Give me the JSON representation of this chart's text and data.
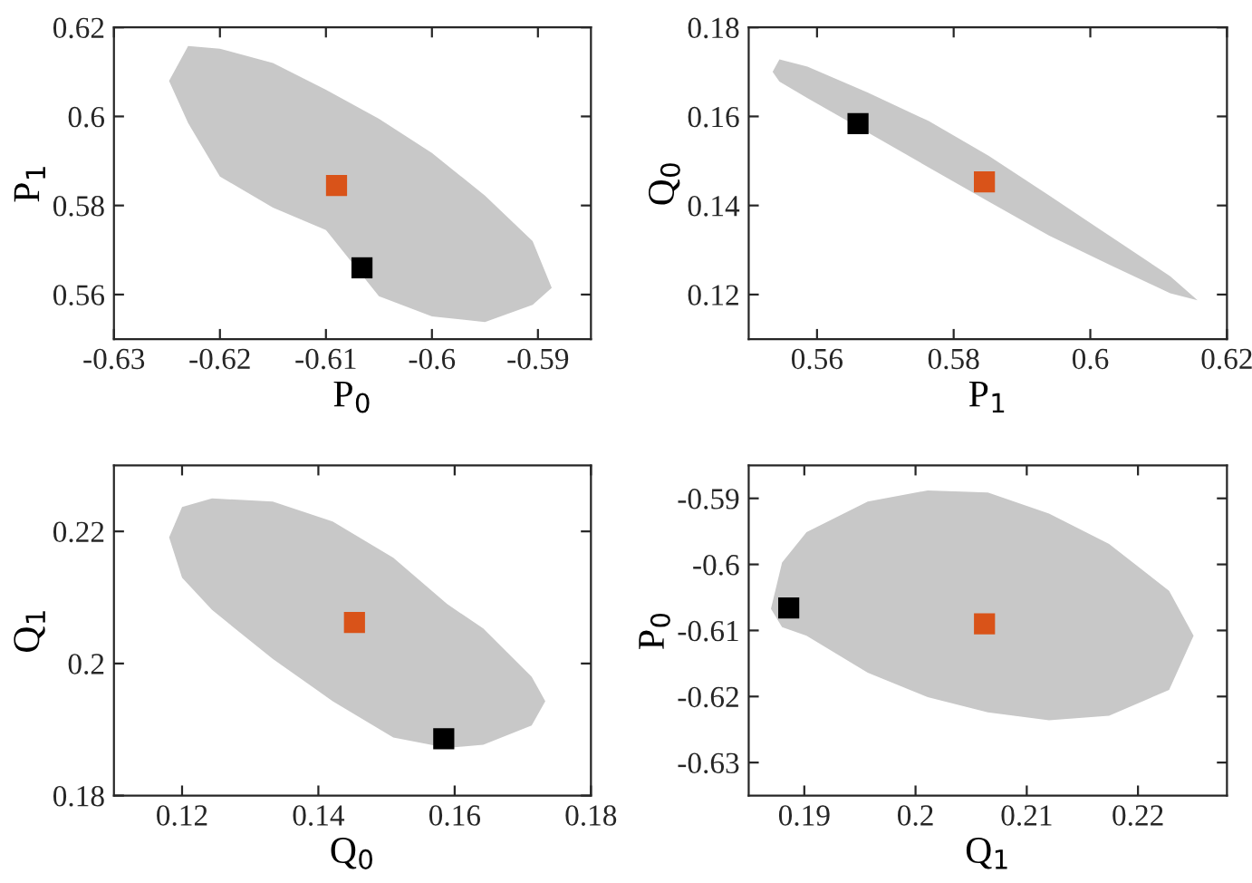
{
  "chart_data": [
    {
      "type": "scatter",
      "xlabel": "P$_{0}$",
      "ylabel": "P$_{1}$",
      "xlim": [
        -0.63,
        -0.585
      ],
      "ylim": [
        0.55,
        0.62
      ],
      "xticks": [
        -0.63,
        -0.62,
        -0.61,
        -0.6,
        -0.59
      ],
      "yticks": [
        0.56,
        0.58,
        0.6,
        0.62
      ],
      "grid": false,
      "legend": false,
      "series": [
        {
          "type": "area",
          "color": "#c8c8c8",
          "x": [
            -0.6248,
            -0.623,
            -0.62,
            -0.615,
            -0.61,
            -0.605,
            -0.6,
            -0.595,
            -0.5905,
            -0.5887,
            -0.5905,
            -0.595,
            -0.6,
            -0.605,
            -0.61,
            -0.615,
            -0.62,
            -0.623
          ],
          "values": [
            0.608,
            0.6158,
            0.6152,
            0.612,
            0.606,
            0.5995,
            0.5918,
            0.5822,
            0.572,
            0.5615,
            0.5577,
            0.5538,
            0.5551,
            0.5596,
            0.5745,
            0.5795,
            0.5865,
            0.5985
          ]
        },
        {
          "type": "scatter",
          "marker": "square",
          "color": "#d95319",
          "x": [
            -0.609
          ],
          "values": [
            0.5845
          ]
        },
        {
          "type": "scatter",
          "marker": "square",
          "color": "#000000",
          "x": [
            -0.6066
          ],
          "values": [
            0.566
          ]
        }
      ]
    },
    {
      "type": "scatter",
      "xlabel": "P$_{1}$",
      "ylabel": "Q$_{0}$",
      "xlim": [
        0.55,
        0.62
      ],
      "ylim": [
        0.11,
        0.18
      ],
      "xticks": [
        0.56,
        0.58,
        0.6,
        0.62
      ],
      "yticks": [
        0.12,
        0.14,
        0.16,
        0.18
      ],
      "grid": false,
      "legend": false,
      "series": [
        {
          "type": "area",
          "color": "#c8c8c8",
          "x": [
            0.5535,
            0.5545,
            0.5586,
            0.5674,
            0.5763,
            0.5851,
            0.594,
            0.6028,
            0.6117,
            0.6157,
            0.6117,
            0.6028,
            0.594,
            0.5851,
            0.5763,
            0.5674,
            0.5586,
            0.5545
          ],
          "values": [
            0.17,
            0.1728,
            0.1712,
            0.1654,
            0.159,
            0.1512,
            0.1422,
            0.1332,
            0.1241,
            0.1187,
            0.1203,
            0.1267,
            0.1332,
            0.1409,
            0.1486,
            0.1564,
            0.1641,
            0.1678
          ]
        },
        {
          "type": "scatter",
          "marker": "square",
          "color": "#000000",
          "x": [
            0.566
          ],
          "values": [
            0.1584
          ]
        },
        {
          "type": "scatter",
          "marker": "square",
          "color": "#d95319",
          "x": [
            0.5845
          ],
          "values": [
            0.1453
          ]
        }
      ]
    },
    {
      "type": "scatter",
      "xlabel": "Q$_{0}$",
      "ylabel": "Q$_{1}$",
      "xlim": [
        0.11,
        0.18
      ],
      "ylim": [
        0.18,
        0.23
      ],
      "xticks": [
        0.12,
        0.14,
        0.16,
        0.18
      ],
      "yticks": [
        0.18,
        0.2,
        0.22
      ],
      "grid": false,
      "legend": false,
      "series": [
        {
          "type": "area",
          "color": "#c8c8c8",
          "x": [
            0.1181,
            0.12,
            0.1244,
            0.1333,
            0.1421,
            0.151,
            0.1589,
            0.1642,
            0.1713,
            0.1733,
            0.1713,
            0.1642,
            0.1589,
            0.151,
            0.1421,
            0.1333,
            0.1244,
            0.12
          ],
          "values": [
            0.2191,
            0.2237,
            0.225,
            0.2245,
            0.2215,
            0.216,
            0.209,
            0.2053,
            0.198,
            0.1943,
            0.1906,
            0.1877,
            0.1872,
            0.1888,
            0.1943,
            0.2007,
            0.2081,
            0.213
          ]
        },
        {
          "type": "scatter",
          "marker": "square",
          "color": "#d95319",
          "x": [
            0.1453
          ],
          "values": [
            0.2062
          ]
        },
        {
          "type": "scatter",
          "marker": "square",
          "color": "#000000",
          "x": [
            0.1584
          ],
          "values": [
            0.1886
          ]
        }
      ]
    },
    {
      "type": "scatter",
      "xlabel": "Q$_{1}$",
      "ylabel": "P$_{0}$",
      "xlim": [
        0.185,
        0.228
      ],
      "ylim": [
        -0.635,
        -0.585
      ],
      "xticks": [
        0.19,
        0.2,
        0.21,
        0.22
      ],
      "yticks": [
        -0.63,
        -0.62,
        -0.61,
        -0.6,
        -0.59
      ],
      "grid": false,
      "legend": false,
      "series": [
        {
          "type": "area",
          "color": "#c8c8c8",
          "x": [
            0.187,
            0.188,
            0.1902,
            0.1957,
            0.2011,
            0.2065,
            0.212,
            0.2174,
            0.2228,
            0.225,
            0.2228,
            0.2174,
            0.212,
            0.2065,
            0.2011,
            0.1957,
            0.1902,
            0.188
          ],
          "values": [
            -0.6067,
            -0.5997,
            -0.5951,
            -0.5905,
            -0.5888,
            -0.5891,
            -0.5923,
            -0.5969,
            -0.604,
            -0.6108,
            -0.619,
            -0.6229,
            -0.6236,
            -0.6224,
            -0.6201,
            -0.6164,
            -0.6108,
            -0.6095
          ]
        },
        {
          "type": "scatter",
          "marker": "square",
          "color": "#000000",
          "x": [
            0.1886
          ],
          "values": [
            -0.6066
          ]
        },
        {
          "type": "scatter",
          "marker": "square",
          "color": "#d95319",
          "x": [
            0.2062
          ],
          "values": [
            -0.609
          ]
        }
      ]
    }
  ]
}
